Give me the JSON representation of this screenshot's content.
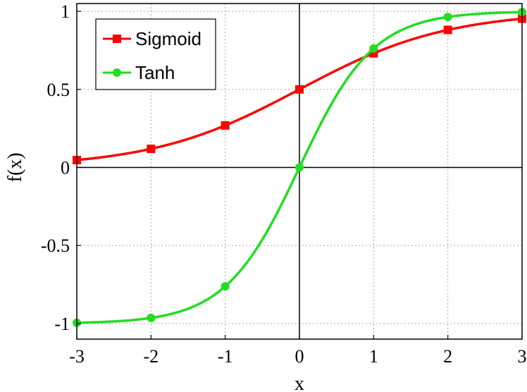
{
  "chart_data": {
    "type": "line",
    "title": "",
    "xlabel": "x",
    "ylabel": "f(x)",
    "xlim": [
      -3,
      3
    ],
    "ylim": [
      -1.1,
      1.05
    ],
    "xticks": [
      -3,
      -2,
      -1,
      0,
      1,
      2,
      3
    ],
    "xtick_labels": [
      "-3",
      "-2",
      "-1",
      "0",
      "1",
      "2",
      "3"
    ],
    "yticks": [
      -1,
      -0.5,
      0,
      0.5,
      1
    ],
    "ytick_labels": [
      "-1",
      "-0.5",
      "0",
      "0.5",
      "1"
    ],
    "grid": true,
    "legend_position": "top-left",
    "series": [
      {
        "name": "Sigmoid",
        "color": "#ff0000",
        "marker": "square",
        "x": [
          -3,
          -2,
          -1,
          0,
          1,
          2,
          3
        ],
        "y": [
          0.047,
          0.119,
          0.269,
          0.5,
          0.731,
          0.881,
          0.953
        ]
      },
      {
        "name": "Tanh",
        "color": "#22dd22",
        "marker": "circle",
        "x": [
          -3,
          -2,
          -1,
          0,
          1,
          2,
          3
        ],
        "y": [
          -0.995,
          -0.964,
          -0.762,
          0.0,
          0.762,
          0.964,
          0.995
        ]
      }
    ]
  }
}
